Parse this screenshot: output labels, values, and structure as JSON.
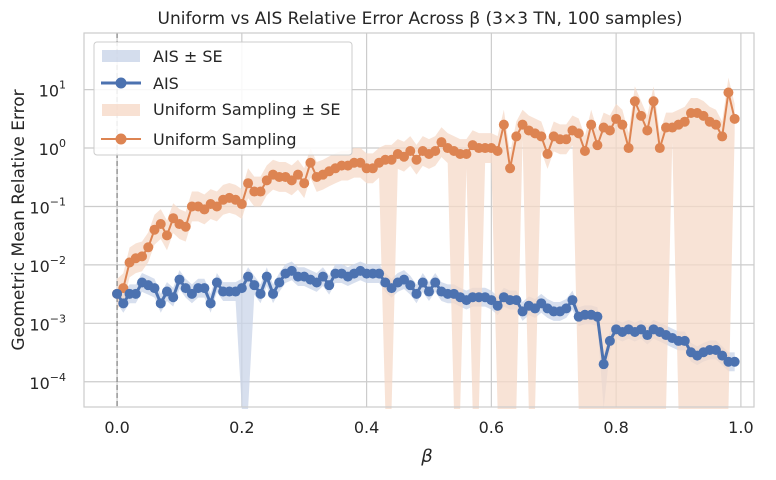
{
  "chart_data": {
    "type": "line",
    "title": "Uniform vs AIS Relative Error Across β (3×3 TN, 100 samples)",
    "xlabel": "β",
    "ylabel": "Geometric Mean Relative Error",
    "xlim": [
      -0.053,
      1.021
    ],
    "ylim": [
      3.7e-05,
      93
    ],
    "yscale": "log",
    "grid": true,
    "legend_position": "top-left",
    "x_ticks": [
      0.0,
      0.2,
      0.4,
      0.6,
      0.8,
      1.0
    ],
    "x_tick_labels": [
      "0.0",
      "0.2",
      "0.4",
      "0.6",
      "0.8",
      "1.0"
    ],
    "y_ticks": [
      0.0001,
      0.001,
      0.01,
      0.1,
      1,
      10
    ],
    "y_tick_labels": [
      {
        "base": "10",
        "exp": "−4"
      },
      {
        "base": "10",
        "exp": "−3"
      },
      {
        "base": "10",
        "exp": "−2"
      },
      {
        "base": "10",
        "exp": "−1"
      },
      {
        "base": "10",
        "exp": "0"
      },
      {
        "base": "10",
        "exp": "1"
      }
    ],
    "reference_line": {
      "x": 0,
      "style": "dashed",
      "color": "#808080"
    },
    "x_start": 0,
    "x_step": 0.01,
    "series": [
      {
        "name": "AIS",
        "band_name": "AIS ± SE",
        "color": "#4c72b0",
        "band_color": "#c9d4e8",
        "band_factor": 1.45,
        "band_to_axis_min_indices": [
          20,
          21,
          78
        ],
        "values": [
          0.0032,
          0.0022,
          0.0032,
          0.0032,
          0.005,
          0.0045,
          0.004,
          0.0022,
          0.0035,
          0.0028,
          0.0056,
          0.004,
          0.0032,
          0.004,
          0.004,
          0.0022,
          0.005,
          0.0035,
          0.0035,
          0.0035,
          0.004,
          0.0063,
          0.0045,
          0.0032,
          0.0063,
          0.0032,
          0.005,
          0.0071,
          0.0079,
          0.0063,
          0.0063,
          0.0056,
          0.005,
          0.0063,
          0.0045,
          0.0071,
          0.0071,
          0.0063,
          0.0071,
          0.0079,
          0.0071,
          0.0071,
          0.0071,
          0.005,
          0.004,
          0.005,
          0.0056,
          0.0045,
          0.0032,
          0.005,
          0.0035,
          0.005,
          0.0035,
          0.0032,
          0.0032,
          0.0028,
          0.0025,
          0.0028,
          0.0028,
          0.0028,
          0.0025,
          0.002,
          0.0028,
          0.0025,
          0.0025,
          0.0016,
          0.002,
          0.0018,
          0.0022,
          0.0018,
          0.0016,
          0.0016,
          0.0018,
          0.0025,
          0.0013,
          0.0014,
          0.0014,
          0.0013,
          0.0002,
          0.0005,
          0.00079,
          0.00071,
          0.00079,
          0.00071,
          0.00079,
          0.00063,
          0.00079,
          0.00071,
          0.00063,
          0.00056,
          0.0005,
          0.0005,
          0.00032,
          0.00028,
          0.00032,
          0.00035,
          0.00035,
          0.00028,
          0.00022,
          0.00022
        ]
      },
      {
        "name": "Uniform Sampling",
        "band_name": "Uniform Sampling ± SE",
        "color": "#dd8452",
        "band_color": "#f6d9c8",
        "band_factor": 1.8,
        "band_to_axis_min_indices": [
          43,
          44,
          54,
          55,
          57,
          58,
          61,
          62,
          63,
          64,
          66,
          67,
          74,
          75,
          76,
          77,
          78,
          79,
          80,
          81,
          82,
          83,
          84,
          85,
          86,
          87,
          88,
          90,
          91,
          92,
          93,
          94,
          95,
          96,
          97,
          98
        ],
        "values": [
          0.0032,
          0.004,
          0.011,
          0.013,
          0.014,
          0.02,
          0.04,
          0.05,
          0.032,
          0.063,
          0.05,
          0.045,
          0.1,
          0.1,
          0.089,
          0.11,
          0.1,
          0.13,
          0.14,
          0.13,
          0.11,
          0.25,
          0.18,
          0.18,
          0.28,
          0.35,
          0.32,
          0.32,
          0.28,
          0.35,
          0.25,
          0.56,
          0.32,
          0.35,
          0.4,
          0.45,
          0.5,
          0.5,
          0.56,
          0.56,
          0.45,
          0.45,
          0.56,
          0.63,
          0.63,
          0.79,
          0.71,
          0.89,
          0.63,
          0.89,
          0.79,
          0.89,
          1.26,
          1.0,
          0.89,
          0.79,
          0.79,
          1.12,
          1.0,
          1.0,
          1.0,
          0.89,
          2.51,
          0.45,
          1.58,
          2.51,
          2.0,
          1.78,
          1.58,
          0.79,
          1.58,
          1.41,
          1.41,
          2.0,
          1.78,
          0.89,
          2.51,
          1.12,
          2.24,
          2.0,
          3.16,
          2.51,
          1.0,
          6.31,
          3.55,
          2.0,
          6.31,
          1.0,
          2.24,
          2.24,
          2.51,
          2.82,
          3.98,
          3.98,
          3.55,
          2.82,
          2.51,
          1.58,
          8.91,
          3.16
        ]
      }
    ]
  }
}
